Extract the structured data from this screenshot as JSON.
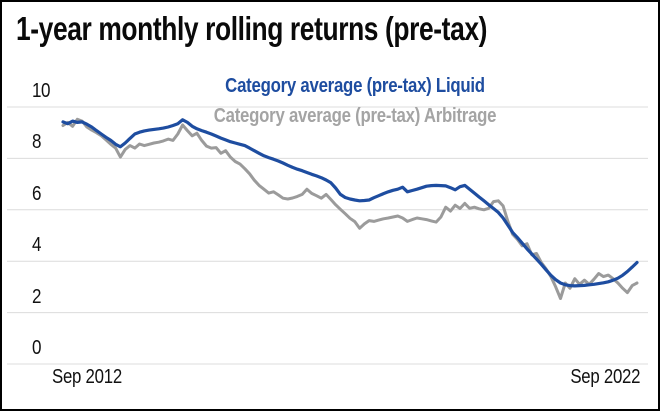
{
  "title": "1-year monthly rolling returns (pre-tax)",
  "colors": {
    "liquid_blue": "#1e4da0",
    "arbitrage_gray": "#9b9b9b",
    "legend_arbitrage_text": "#a4a4a4",
    "grid": "#dcdcdc",
    "axis_text": "#111111",
    "frame_border": "#000000",
    "background": "#ffffff"
  },
  "chart_data": {
    "type": "line",
    "title": "1-year monthly rolling returns (pre-tax)",
    "grid": {
      "horizontal": true,
      "vertical": false
    },
    "legend_position": "top-center",
    "x_axis": {
      "unit": "months since Sep 2012",
      "range": [
        0,
        120
      ],
      "tick_labels": [
        "Sep 2012",
        "Sep 2022"
      ]
    },
    "y_axis": {
      "range": [
        0,
        10
      ],
      "ticks": [
        0,
        2,
        4,
        6,
        8,
        10
      ],
      "label_side": "left"
    },
    "series": [
      {
        "name": "Category average (pre-tax) Liquid",
        "color": "#1e4da0",
        "points": [
          [
            0,
            9.42
          ],
          [
            1,
            9.35
          ],
          [
            2,
            9.45
          ],
          [
            3,
            9.4
          ],
          [
            4,
            9.42
          ],
          [
            5,
            9.33
          ],
          [
            6,
            9.22
          ],
          [
            7,
            9.08
          ],
          [
            8,
            8.95
          ],
          [
            9,
            8.82
          ],
          [
            10,
            8.7
          ],
          [
            11,
            8.55
          ],
          [
            12,
            8.45
          ],
          [
            13,
            8.6
          ],
          [
            14,
            8.78
          ],
          [
            15,
            8.95
          ],
          [
            16,
            9.02
          ],
          [
            17,
            9.07
          ],
          [
            18,
            9.1
          ],
          [
            19,
            9.13
          ],
          [
            20,
            9.15
          ],
          [
            21,
            9.18
          ],
          [
            22,
            9.22
          ],
          [
            23,
            9.28
          ],
          [
            24,
            9.35
          ],
          [
            25,
            9.5
          ],
          [
            26,
            9.4
          ],
          [
            27,
            9.25
          ],
          [
            28,
            9.15
          ],
          [
            29,
            9.08
          ],
          [
            30,
            9.02
          ],
          [
            31,
            8.95
          ],
          [
            32,
            8.87
          ],
          [
            33,
            8.79
          ],
          [
            34,
            8.72
          ],
          [
            35,
            8.65
          ],
          [
            36,
            8.6
          ],
          [
            37,
            8.55
          ],
          [
            38,
            8.5
          ],
          [
            39,
            8.4
          ],
          [
            40,
            8.3
          ],
          [
            41,
            8.2
          ],
          [
            42,
            8.1
          ],
          [
            43,
            8.03
          ],
          [
            44,
            7.97
          ],
          [
            45,
            7.9
          ],
          [
            46,
            7.82
          ],
          [
            47,
            7.73
          ],
          [
            48,
            7.65
          ],
          [
            49,
            7.58
          ],
          [
            50,
            7.52
          ],
          [
            51,
            7.45
          ],
          [
            52,
            7.38
          ],
          [
            53,
            7.32
          ],
          [
            54,
            7.25
          ],
          [
            55,
            7.16
          ],
          [
            56,
            7.05
          ],
          [
            57,
            6.85
          ],
          [
            58,
            6.6
          ],
          [
            59,
            6.48
          ],
          [
            60,
            6.42
          ],
          [
            61,
            6.38
          ],
          [
            62,
            6.35
          ],
          [
            63,
            6.36
          ],
          [
            64,
            6.38
          ],
          [
            65,
            6.47
          ],
          [
            66,
            6.55
          ],
          [
            67,
            6.63
          ],
          [
            68,
            6.7
          ],
          [
            69,
            6.76
          ],
          [
            70,
            6.8
          ],
          [
            71,
            6.88
          ],
          [
            72,
            6.7
          ],
          [
            73,
            6.75
          ],
          [
            74,
            6.8
          ],
          [
            75,
            6.86
          ],
          [
            76,
            6.92
          ],
          [
            77,
            6.94
          ],
          [
            78,
            6.95
          ],
          [
            79,
            6.94
          ],
          [
            80,
            6.93
          ],
          [
            81,
            6.86
          ],
          [
            82,
            6.78
          ],
          [
            83,
            6.9
          ],
          [
            84,
            6.95
          ],
          [
            85,
            6.8
          ],
          [
            86,
            6.65
          ],
          [
            87,
            6.5
          ],
          [
            88,
            6.35
          ],
          [
            89,
            6.2
          ],
          [
            90,
            6.05
          ],
          [
            91,
            5.9
          ],
          [
            92,
            5.68
          ],
          [
            93,
            5.4
          ],
          [
            94,
            5.12
          ],
          [
            95,
            4.92
          ],
          [
            96,
            4.7
          ],
          [
            97,
            4.48
          ],
          [
            98,
            4.28
          ],
          [
            99,
            4.08
          ],
          [
            100,
            3.88
          ],
          [
            101,
            3.66
          ],
          [
            102,
            3.45
          ],
          [
            103,
            3.28
          ],
          [
            104,
            3.15
          ],
          [
            105,
            3.08
          ],
          [
            106,
            3.05
          ],
          [
            107,
            3.04
          ],
          [
            108,
            3.05
          ],
          [
            109,
            3.06
          ],
          [
            110,
            3.08
          ],
          [
            111,
            3.1
          ],
          [
            112,
            3.13
          ],
          [
            113,
            3.16
          ],
          [
            114,
            3.2
          ],
          [
            115,
            3.26
          ],
          [
            116,
            3.34
          ],
          [
            117,
            3.45
          ],
          [
            118,
            3.6
          ],
          [
            119,
            3.77
          ],
          [
            120,
            3.95
          ]
        ]
      },
      {
        "name": "Category average (pre-tax) Arbitrage",
        "color": "#9b9b9b",
        "points": [
          [
            0,
            9.28
          ],
          [
            1,
            9.4
          ],
          [
            2,
            9.25
          ],
          [
            3,
            9.52
          ],
          [
            4,
            9.45
          ],
          [
            5,
            9.22
          ],
          [
            6,
            9.1
          ],
          [
            7,
            9.0
          ],
          [
            8,
            8.88
          ],
          [
            9,
            8.72
          ],
          [
            10,
            8.55
          ],
          [
            11,
            8.4
          ],
          [
            12,
            8.05
          ],
          [
            13,
            8.35
          ],
          [
            14,
            8.5
          ],
          [
            15,
            8.4
          ],
          [
            16,
            8.56
          ],
          [
            17,
            8.5
          ],
          [
            18,
            8.55
          ],
          [
            19,
            8.6
          ],
          [
            20,
            8.63
          ],
          [
            21,
            8.68
          ],
          [
            22,
            8.75
          ],
          [
            23,
            8.7
          ],
          [
            24,
            8.95
          ],
          [
            25,
            9.3
          ],
          [
            26,
            9.08
          ],
          [
            27,
            8.88
          ],
          [
            28,
            8.98
          ],
          [
            29,
            8.7
          ],
          [
            30,
            8.48
          ],
          [
            31,
            8.4
          ],
          [
            32,
            8.42
          ],
          [
            33,
            8.2
          ],
          [
            34,
            8.3
          ],
          [
            35,
            8.05
          ],
          [
            36,
            7.88
          ],
          [
            37,
            7.78
          ],
          [
            38,
            7.6
          ],
          [
            39,
            7.4
          ],
          [
            40,
            7.15
          ],
          [
            41,
            6.95
          ],
          [
            42,
            6.8
          ],
          [
            43,
            6.65
          ],
          [
            44,
            6.7
          ],
          [
            45,
            6.58
          ],
          [
            46,
            6.45
          ],
          [
            47,
            6.42
          ],
          [
            48,
            6.46
          ],
          [
            49,
            6.52
          ],
          [
            50,
            6.6
          ],
          [
            51,
            6.8
          ],
          [
            52,
            6.64
          ],
          [
            53,
            6.55
          ],
          [
            54,
            6.45
          ],
          [
            55,
            6.6
          ],
          [
            56,
            6.4
          ],
          [
            57,
            6.2
          ],
          [
            58,
            6.02
          ],
          [
            59,
            5.85
          ],
          [
            60,
            5.67
          ],
          [
            61,
            5.54
          ],
          [
            62,
            5.28
          ],
          [
            63,
            5.45
          ],
          [
            64,
            5.58
          ],
          [
            65,
            5.55
          ],
          [
            66,
            5.6
          ],
          [
            67,
            5.65
          ],
          [
            68,
            5.68
          ],
          [
            69,
            5.72
          ],
          [
            70,
            5.76
          ],
          [
            71,
            5.68
          ],
          [
            72,
            5.55
          ],
          [
            73,
            5.62
          ],
          [
            74,
            5.68
          ],
          [
            75,
            5.65
          ],
          [
            76,
            5.62
          ],
          [
            77,
            5.57
          ],
          [
            78,
            5.52
          ],
          [
            79,
            5.72
          ],
          [
            80,
            6.1
          ],
          [
            81,
            5.95
          ],
          [
            82,
            6.18
          ],
          [
            83,
            6.05
          ],
          [
            84,
            6.25
          ],
          [
            85,
            6.06
          ],
          [
            86,
            6.1
          ],
          [
            87,
            6.04
          ],
          [
            88,
            6.0
          ],
          [
            89,
            6.06
          ],
          [
            90,
            6.32
          ],
          [
            91,
            6.35
          ],
          [
            92,
            6.15
          ],
          [
            93,
            5.55
          ],
          [
            94,
            5.05
          ],
          [
            95,
            4.85
          ],
          [
            96,
            4.6
          ],
          [
            97,
            4.68
          ],
          [
            98,
            4.25
          ],
          [
            99,
            4.3
          ],
          [
            100,
            3.95
          ],
          [
            101,
            3.7
          ],
          [
            102,
            3.4
          ],
          [
            103,
            3.0
          ],
          [
            104,
            2.55
          ],
          [
            105,
            3.15
          ],
          [
            106,
            2.95
          ],
          [
            107,
            3.32
          ],
          [
            108,
            3.1
          ],
          [
            109,
            3.26
          ],
          [
            110,
            3.1
          ],
          [
            111,
            3.3
          ],
          [
            112,
            3.52
          ],
          [
            113,
            3.4
          ],
          [
            114,
            3.46
          ],
          [
            115,
            3.32
          ],
          [
            116,
            3.15
          ],
          [
            117,
            2.95
          ],
          [
            118,
            2.78
          ],
          [
            119,
            3.05
          ],
          [
            120,
            3.15
          ]
        ]
      }
    ]
  }
}
